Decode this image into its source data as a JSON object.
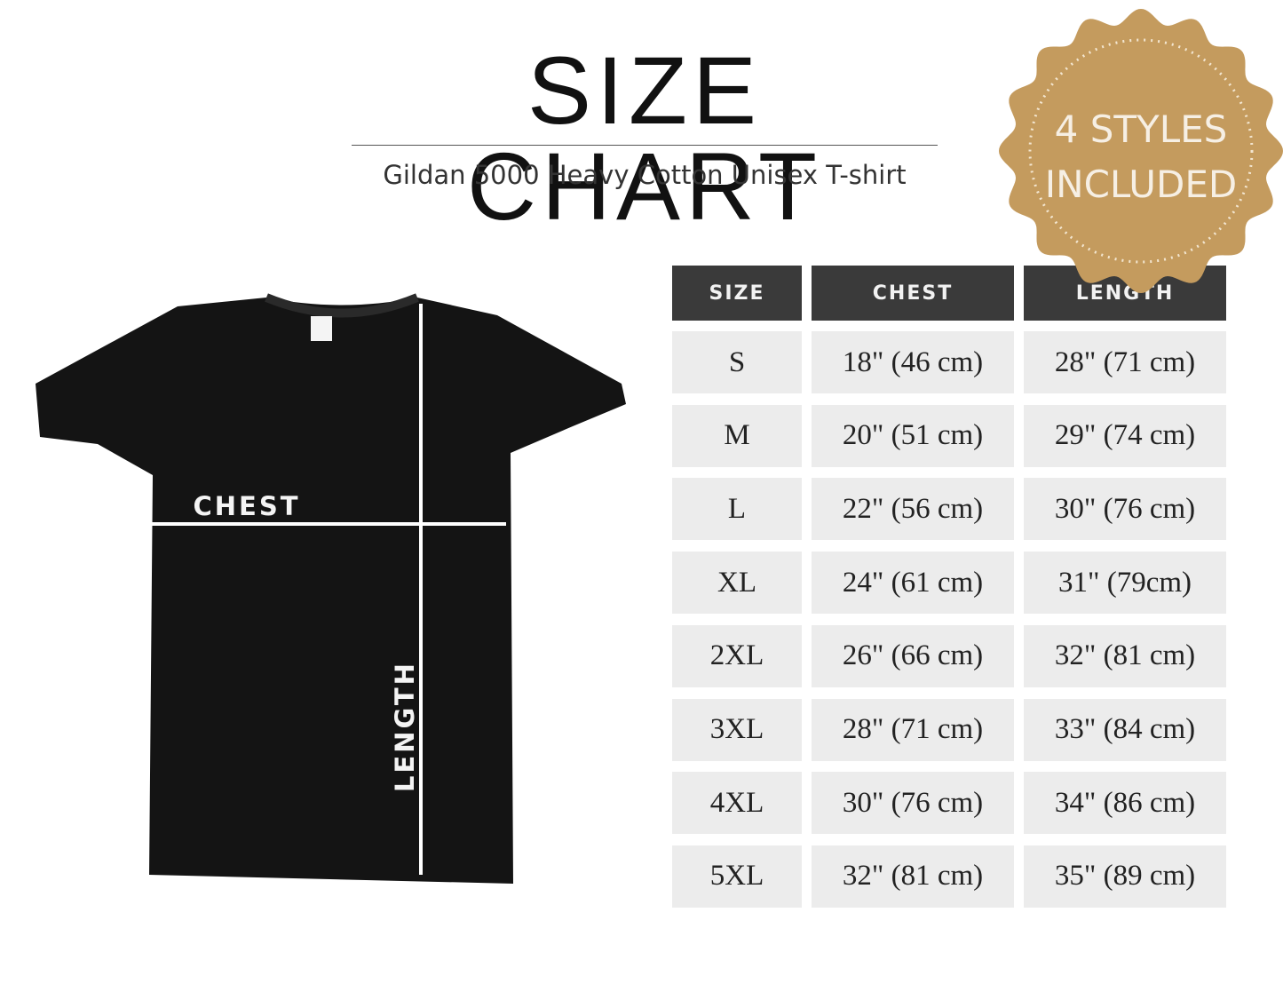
{
  "header": {
    "title": "SIZE CHART",
    "subtitle": "Gildan 5000 Heavy Cotton Unisex T-shirt"
  },
  "badge": {
    "lines": [
      "4 STYLES",
      "INCLUDED"
    ]
  },
  "shirt": {
    "chest_label": "CHEST",
    "length_label": "LENGTH"
  },
  "table": {
    "columns": [
      "SIZE",
      "CHEST",
      "LENGTH"
    ],
    "rows": [
      [
        "S",
        "18\" (46 cm)",
        "28\" (71 cm)"
      ],
      [
        "M",
        "20\" (51 cm)",
        "29\" (74 cm)"
      ],
      [
        "L",
        "22\" (56 cm)",
        "30\" (76 cm)"
      ],
      [
        "XL",
        "24\" (61 cm)",
        "31\" (79cm)"
      ],
      [
        "2XL",
        "26\" (66 cm)",
        "32\" (81 cm)"
      ],
      [
        "3XL",
        "28\" (71 cm)",
        "33\" (84 cm)"
      ],
      [
        "4XL",
        "30\" (76 cm)",
        "34\" (86 cm)"
      ],
      [
        "5XL",
        "32\" (81 cm)",
        "35\" (89 cm)"
      ]
    ]
  }
}
